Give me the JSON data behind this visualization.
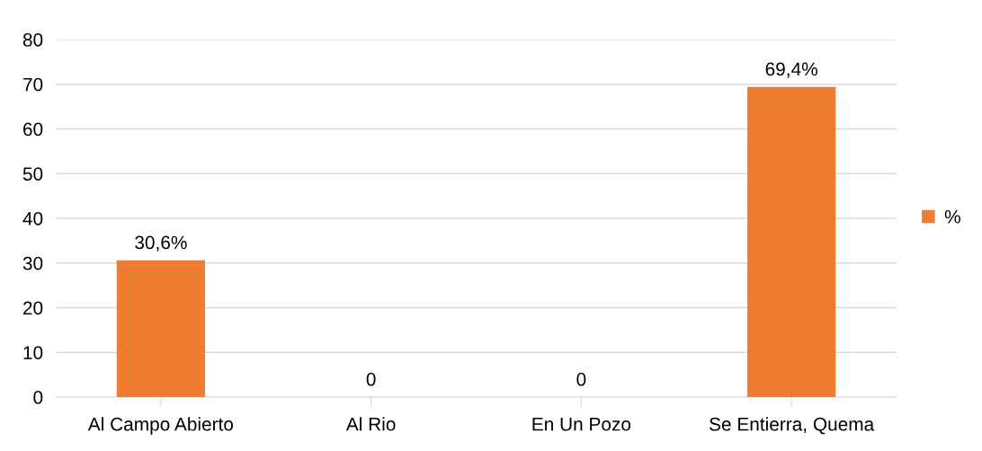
{
  "chart_data": {
    "type": "bar",
    "categories": [
      "Al Campo Abierto",
      "Al Rio",
      "En Un Pozo",
      "Se Entierra, Quema"
    ],
    "series": [
      {
        "name": "%",
        "color": "#ed7d31",
        "values": [
          30.6,
          0,
          0,
          69.4
        ],
        "value_labels": [
          "30,6%",
          "0",
          "0",
          "69,4%"
        ]
      }
    ],
    "ylim": [
      0,
      80
    ],
    "yticks": [
      0,
      10,
      20,
      30,
      40,
      50,
      60,
      70,
      80
    ],
    "grid": "y",
    "legend": "right"
  }
}
